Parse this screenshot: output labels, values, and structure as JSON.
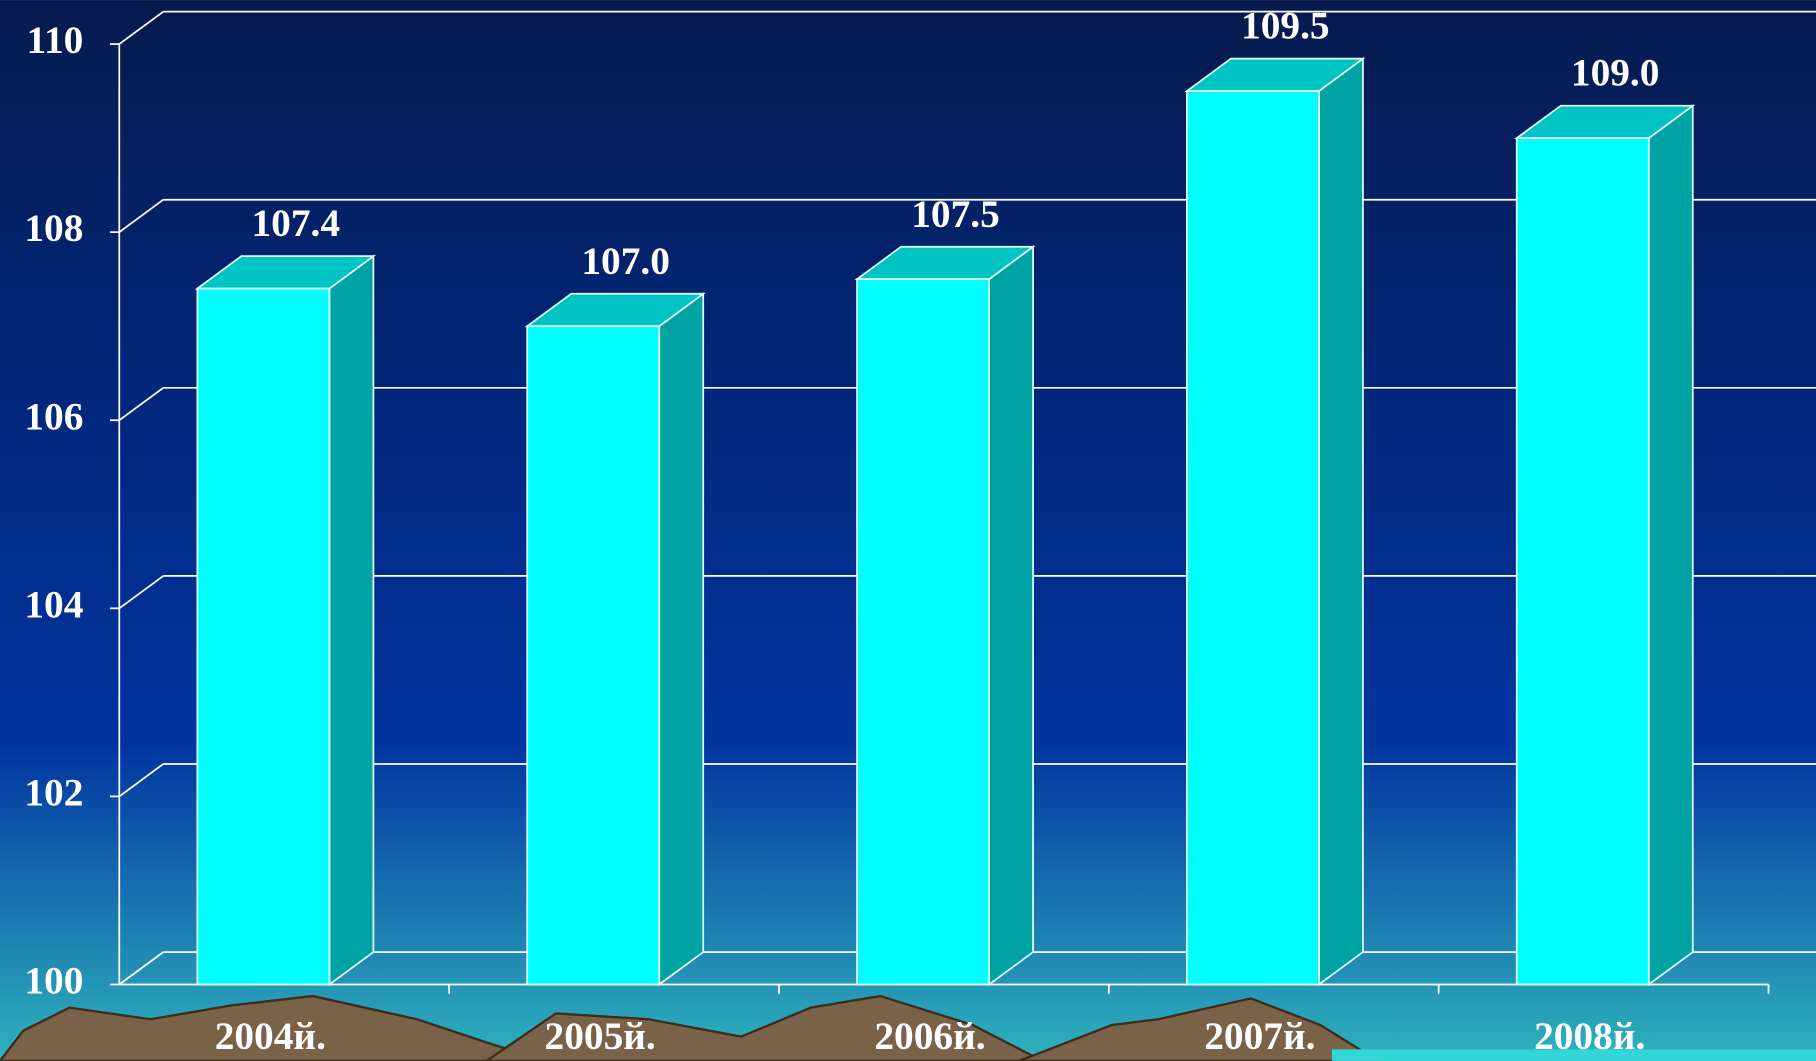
{
  "chart_data": {
    "type": "bar3d",
    "categories": [
      "2004й.",
      "2005й.",
      "2006й.",
      "2007й.",
      "2008й."
    ],
    "values": [
      107.4,
      107.0,
      107.5,
      109.5,
      109.0
    ],
    "value_labels": [
      "107.4",
      "107.0",
      "107.5",
      "109.5",
      "109.0"
    ],
    "color": "#00ffff",
    "ylim": [
      100,
      110
    ],
    "yticks": [
      100,
      102,
      104,
      106,
      108,
      110
    ],
    "grid": true
  }
}
